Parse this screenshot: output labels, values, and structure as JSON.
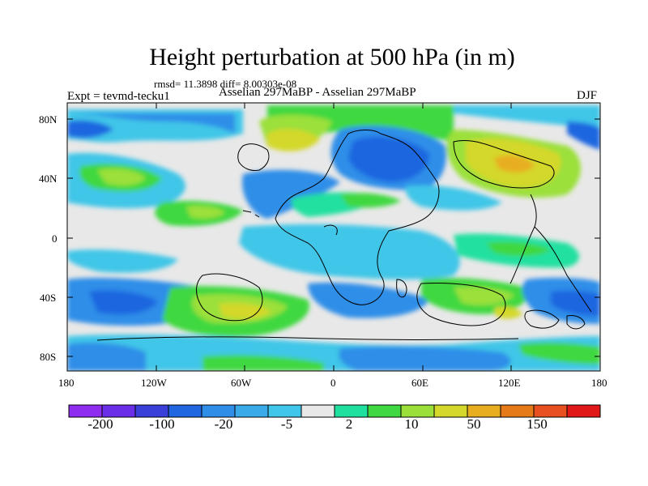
{
  "header": {
    "title": "Height perturbation at 500 hPa (in m)",
    "subtitle": "rmsd= 11.3898 diff= 8.00303e-08",
    "left_label": "Expt = tevmd-tecku1",
    "center_label": "Asselian 297MaBP - Asselian 297MaBP",
    "right_label": "DJF"
  },
  "axes": {
    "y_ticks": [
      "80N",
      "40N",
      "0",
      "40S",
      "80S"
    ],
    "x_ticks": [
      "180",
      "120W",
      "60W",
      "0",
      "60E",
      "120E",
      "180"
    ]
  },
  "colorbar": {
    "colors": [
      "#8e2cf0",
      "#6a2ee8",
      "#3a3fd9",
      "#1f66e0",
      "#2f8ee8",
      "#3aaae8",
      "#40c6e8",
      "#e8e8e8",
      "#20e0a0",
      "#3fd840",
      "#9be03a",
      "#d4d82a",
      "#e8ae20",
      "#e67a18",
      "#e85020",
      "#e01818"
    ],
    "labels": [
      "-200",
      "-100",
      "-20",
      "-5",
      "2",
      "10",
      "50",
      "150"
    ]
  }
}
